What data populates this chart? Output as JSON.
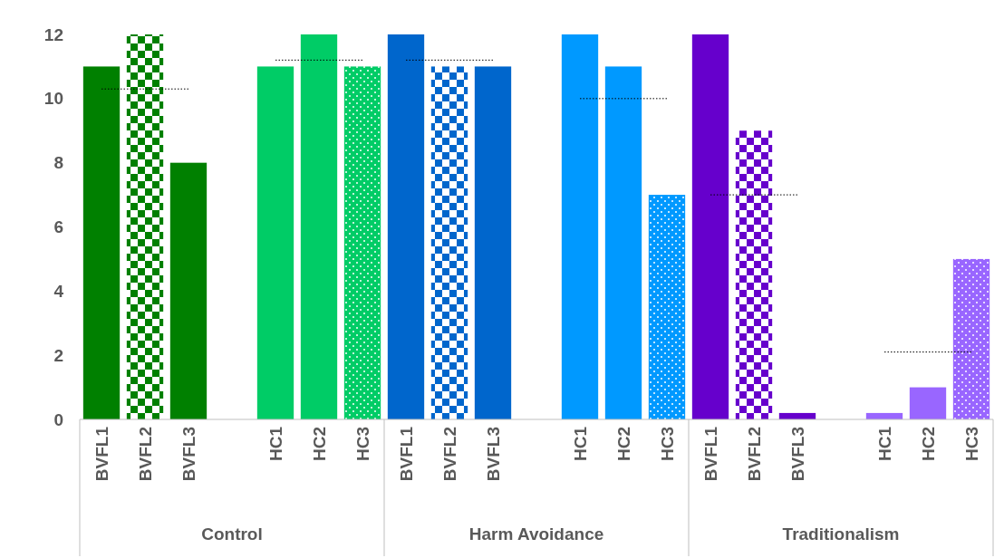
{
  "chart_data": {
    "type": "bar",
    "categories": [
      "BVFL1",
      "BVFL2",
      "BVFL3",
      null,
      "HC1",
      "HC2",
      "HC3",
      "BVFL1",
      "BVFL2",
      "BVFL3",
      null,
      "HC1",
      "HC2",
      "HC3",
      "BVFL1",
      "BVFL2",
      "BVFL3",
      null,
      "HC1",
      "HC2",
      "HC3"
    ],
    "series": [
      {
        "values": [
          11,
          null,
          8,
          null,
          11,
          12,
          null,
          12,
          null,
          11,
          null,
          12,
          11,
          null,
          12,
          null,
          0.2,
          null,
          0.2,
          1,
          null
        ],
        "colors": [
          "#008000",
          "#008000",
          "#008000",
          null,
          "#00cc66",
          "#00cc66",
          "#00cc66",
          "#0066cc",
          "#0066cc",
          "#0066cc",
          null,
          "#0099ff",
          "#0099ff",
          "#0099ff",
          "#6600cc",
          "#6600cc",
          "#6600cc",
          null,
          "#9966ff",
          "#9966ff",
          "#9966ff"
        ]
      },
      {
        "values": [
          null,
          12,
          null,
          null,
          null,
          null,
          null,
          null,
          11,
          null,
          null,
          null,
          null,
          null,
          null,
          9,
          null,
          null,
          null,
          null,
          null
        ],
        "colors": [
          "#008000",
          "#008000",
          "#008000",
          null,
          "#00cc66",
          "#00cc66",
          "#00cc66",
          "#0066cc",
          "#0066cc",
          "#0066cc",
          null,
          "#0099ff",
          "#0099ff",
          "#0099ff",
          "#6600cc",
          "#6600cc",
          "#6600cc",
          null,
          "#9966ff",
          "#9966ff",
          "#9966ff"
        ]
      },
      {
        "values": [
          null,
          null,
          null,
          null,
          null,
          null,
          11,
          null,
          null,
          null,
          null,
          null,
          null,
          7,
          null,
          null,
          null,
          null,
          null,
          null,
          5
        ],
        "colors": [
          "#008000",
          "#008000",
          "#008000",
          null,
          "#00cc66",
          "#00cc66",
          "#00cc66",
          "#0066cc",
          "#0066cc",
          "#0066cc",
          null,
          "#0099ff",
          "#0099ff",
          "#0099ff",
          "#6600cc",
          "#6600cc",
          "#6600cc",
          null,
          "#9966ff",
          "#9966ff",
          "#9966ff"
        ]
      },
      {
        "type": "line",
        "color": "#000000",
        "line_style": "dotted",
        "values": [
          10.3,
          10.3,
          10.3,
          null,
          11.2,
          11.2,
          11.2,
          11.2,
          11.2,
          11.2,
          null,
          10,
          10,
          10,
          7,
          7,
          7,
          null,
          2.1,
          2.1,
          2.1
        ]
      }
    ],
    "annotations": [
      "Control",
      "Harm Avoidance",
      "Traditionalism"
    ],
    "ylim": [
      0,
      12
    ],
    "yticks": [
      0,
      2,
      4,
      6,
      8,
      10,
      12
    ],
    "grid": false
  }
}
